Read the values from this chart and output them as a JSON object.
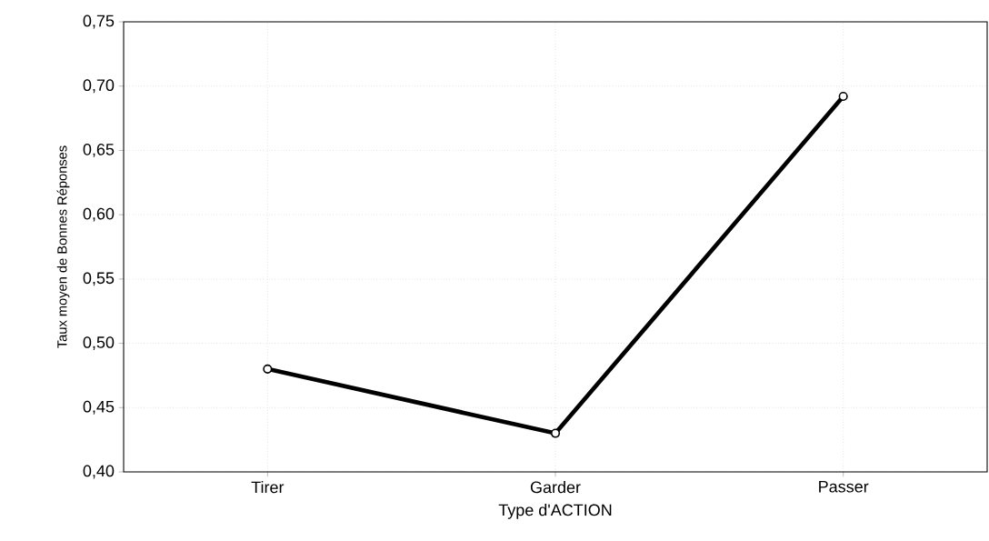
{
  "chart_data": {
    "type": "line",
    "xlabel": "Type d'ACTION",
    "ylabel": "Taux moyen de Bonnes Réponses",
    "categories": [
      "Tirer",
      "Garder",
      "Passer"
    ],
    "series": [
      {
        "color": "#000000",
        "values": [
          0.48,
          0.43,
          0.692
        ]
      }
    ],
    "ylim": [
      0.4,
      0.75
    ],
    "yticks": [
      {
        "value": 0.4,
        "label": "0,40"
      },
      {
        "value": 0.45,
        "label": "0,45"
      },
      {
        "value": 0.5,
        "label": "0,50"
      },
      {
        "value": 0.55,
        "label": "0,55"
      },
      {
        "value": 0.6,
        "label": "0,60"
      },
      {
        "value": 0.65,
        "label": "0,65"
      },
      {
        "value": 0.7,
        "label": "0,70"
      },
      {
        "value": 0.75,
        "label": "0,75"
      }
    ],
    "grid": true,
    "marker": "circle",
    "line_style": "solid"
  }
}
